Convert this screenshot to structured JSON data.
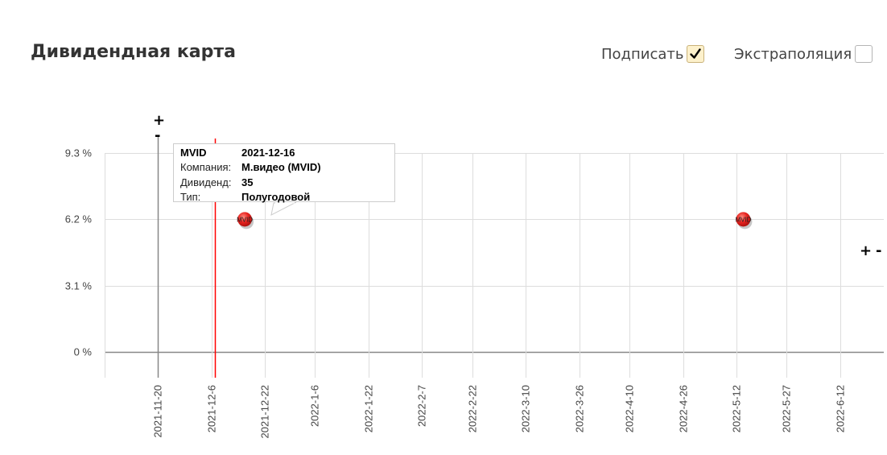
{
  "header": {
    "title": "Дивидендная карта",
    "label_option": "Подписать",
    "label_option_checked": true,
    "extrapolation_option": "Экстраполяция",
    "extrapolation_option_checked": false
  },
  "controls": {
    "zoom_in": "+",
    "zoom_out": "-"
  },
  "tooltip": {
    "ticker": "MVID",
    "date": "2021-12-16",
    "company_label": "Компания:",
    "company_value": "М.видео (MVID)",
    "dividend_label": "Дивиденд:",
    "dividend_value": "35",
    "type_label": "Тип:",
    "type_value": "Полугодовой"
  },
  "colors": {
    "point": "#e8231f",
    "today_line": "#ff0000",
    "grid": "#dddddd",
    "axis": "#888888"
  },
  "chart_data": {
    "type": "scatter",
    "title": "",
    "xlabel": "",
    "ylabel": "",
    "x_ticks": [
      "2021-11-20",
      "2021-12-6",
      "2021-12-22",
      "2022-1-6",
      "2022-1-22",
      "2022-2-7",
      "2022-2-22",
      "2022-3-10",
      "2022-3-26",
      "2022-4-10",
      "2022-4-26",
      "2022-5-12",
      "2022-5-27",
      "2022-6-12"
    ],
    "y_ticks": [
      "9.3 %",
      "6.2 %",
      "3.1 %",
      "0 %"
    ],
    "xlim": [
      "2021-11-20",
      "2022-6-12"
    ],
    "ylim": [
      0,
      9.3
    ],
    "grid": true,
    "today_marker": "2021-12-7",
    "series": [
      {
        "points": [
          {
            "x": "2021-12-16",
            "y": 6.2,
            "label": "MVID"
          },
          {
            "x": "2022-5-14",
            "y": 6.2,
            "label": "MVID"
          }
        ]
      }
    ]
  }
}
